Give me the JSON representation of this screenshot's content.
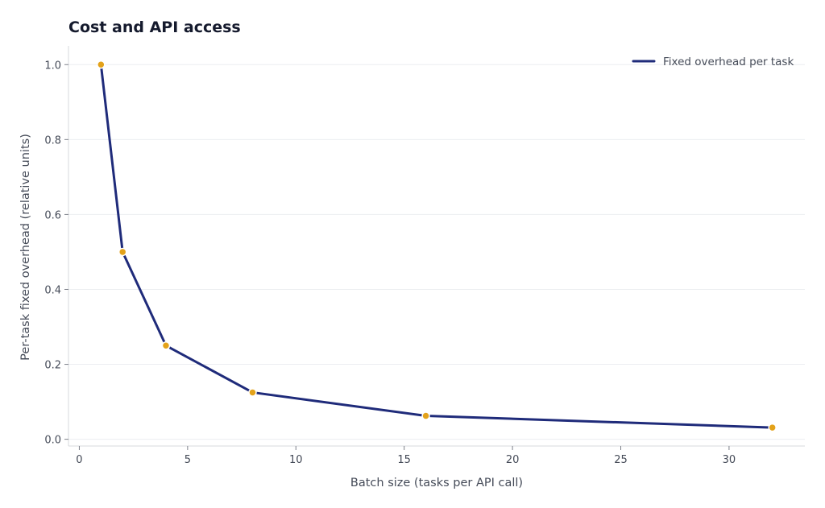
{
  "chart_data": {
    "type": "line",
    "title": "Cost and API access",
    "xlabel": "Batch size (tasks per API call)",
    "ylabel": "Per-task fixed overhead (relative units)",
    "xlim": [
      -0.5,
      33.5
    ],
    "ylim": [
      -0.018,
      1.05
    ],
    "x_ticks": [
      0,
      5,
      10,
      15,
      20,
      25,
      30
    ],
    "y_ticks": [
      0.0,
      0.2,
      0.4,
      0.6,
      0.8,
      1.0
    ],
    "x_tick_labels": [
      "0",
      "5",
      "10",
      "15",
      "20",
      "25",
      "30"
    ],
    "y_tick_labels": [
      "0.0",
      "0.2",
      "0.4",
      "0.6",
      "0.8",
      "1.0"
    ],
    "grid": true,
    "legend": {
      "position": "top-right",
      "entries": [
        "Fixed overhead per task"
      ]
    },
    "series": [
      {
        "name": "Fixed overhead per task",
        "color": "#1f2b7a",
        "marker_color": "#e3a21a",
        "x": [
          1,
          2,
          4,
          8,
          16,
          32
        ],
        "y": [
          1.0,
          0.5,
          0.25,
          0.125,
          0.0625,
          0.03125
        ]
      }
    ]
  }
}
